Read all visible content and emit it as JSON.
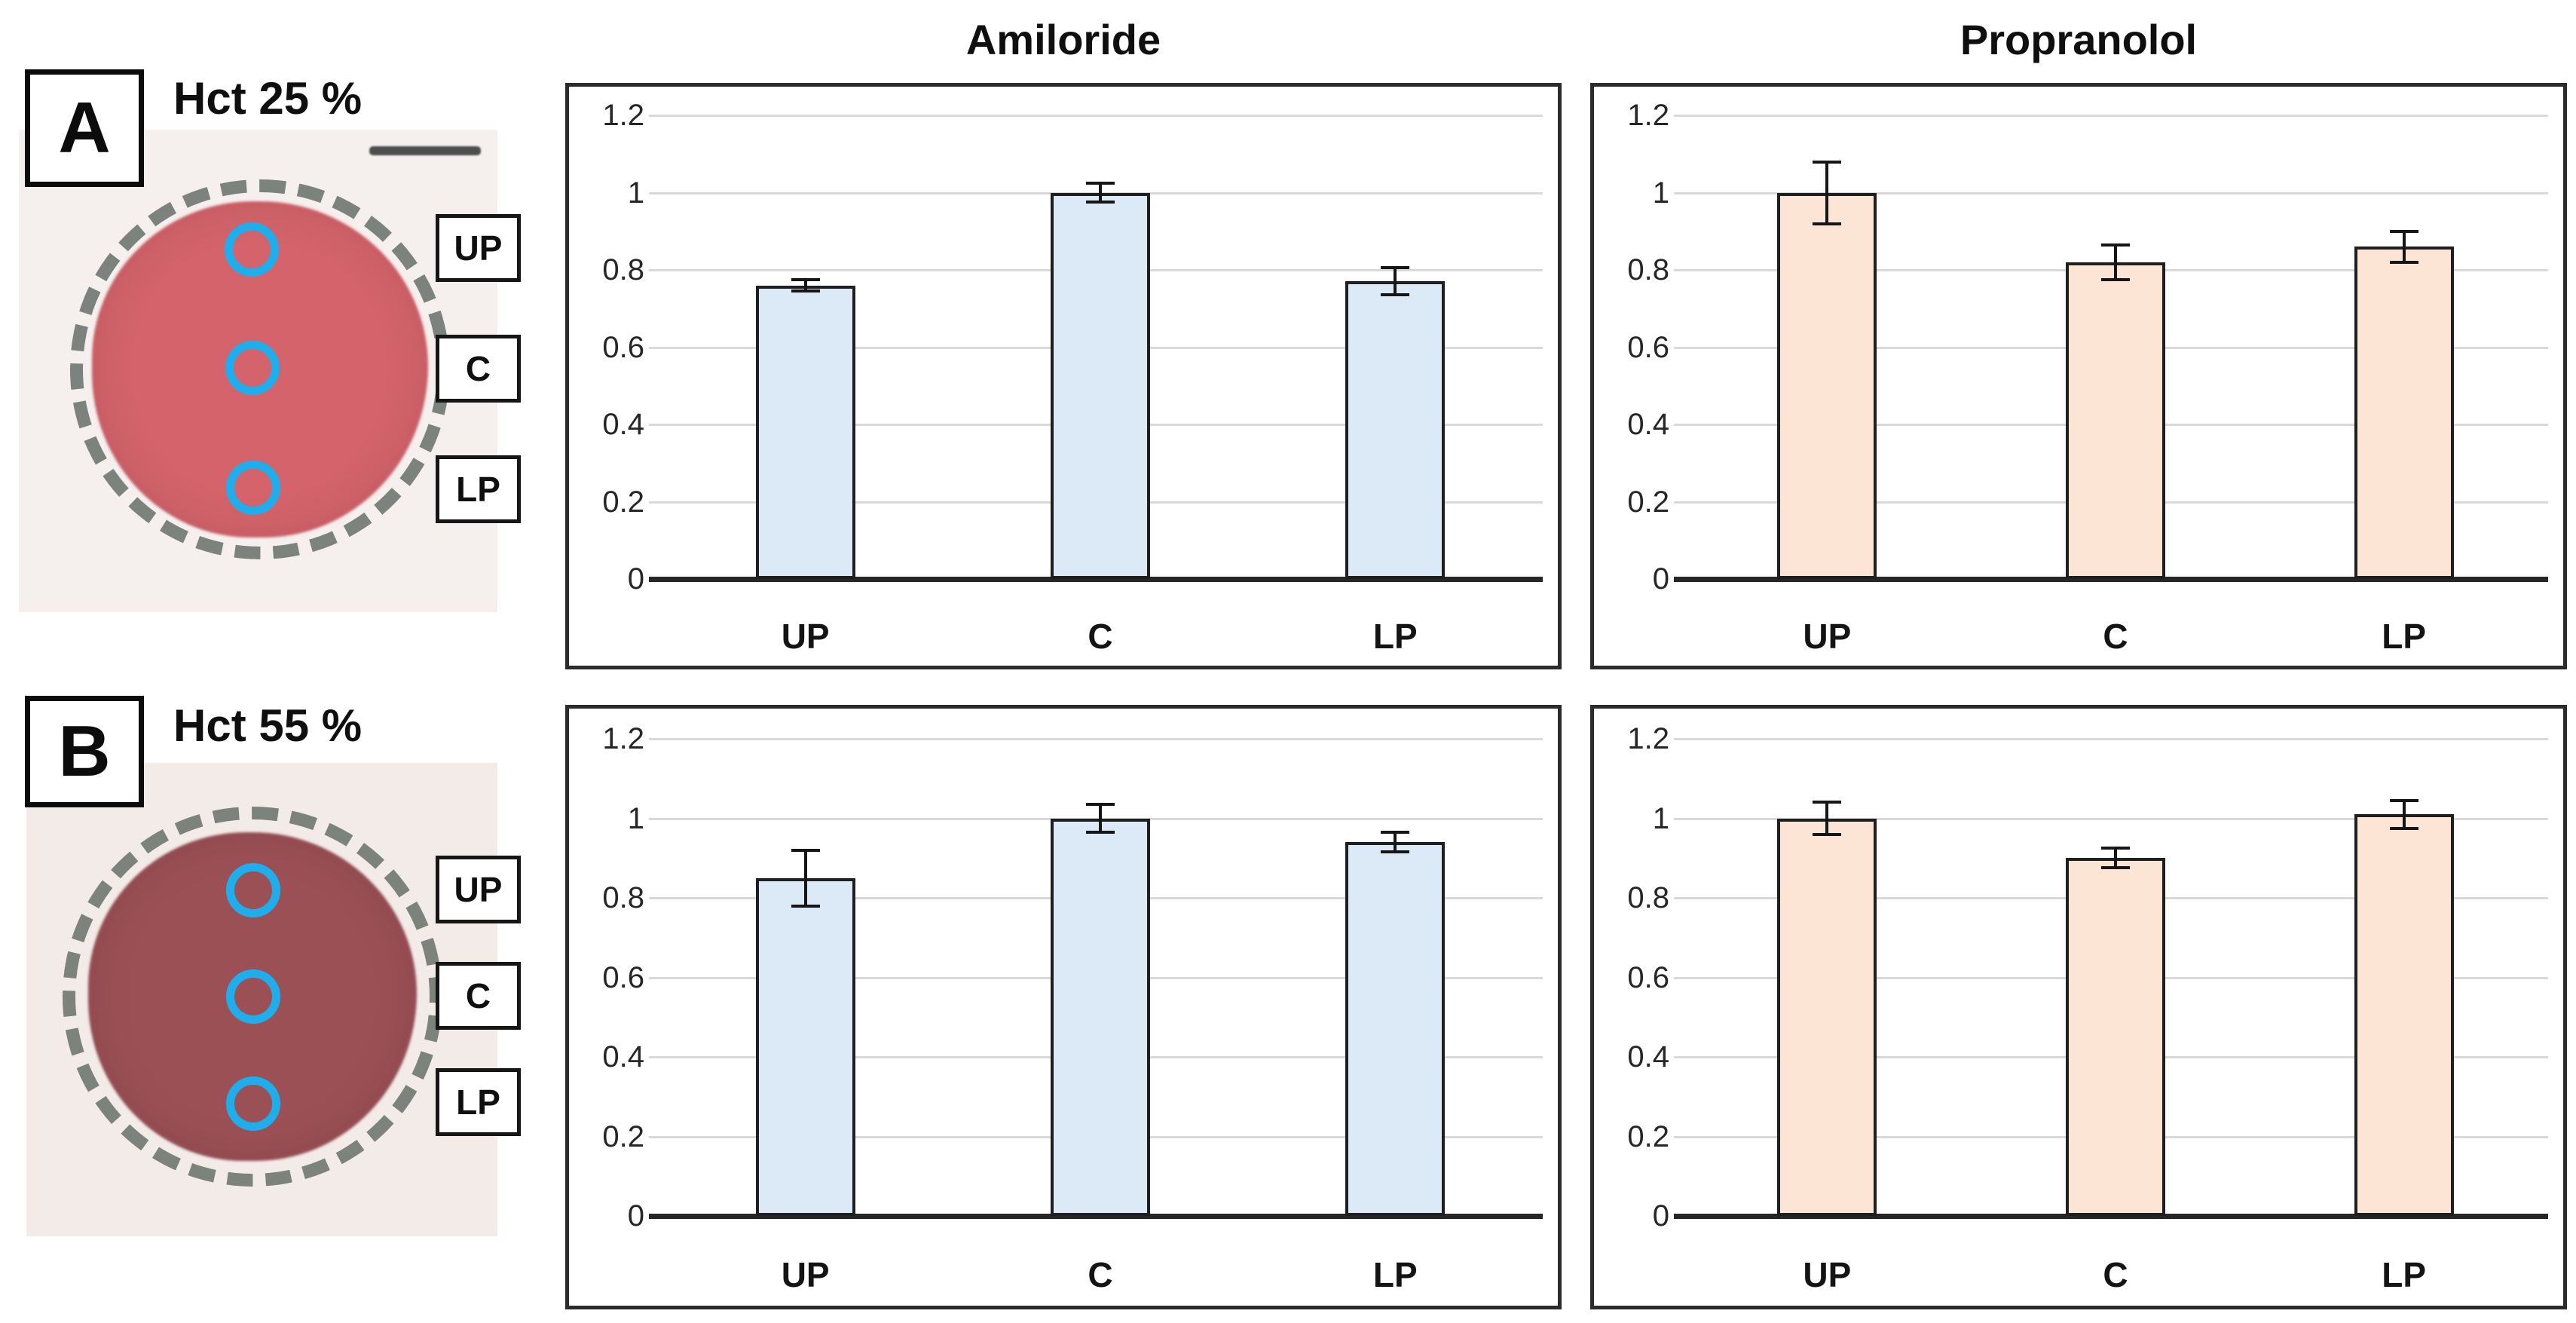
{
  "columns": {
    "amiloride_title": "Amiloride",
    "propranolol_title": "Propranolol"
  },
  "panels": [
    {
      "label": "A",
      "hct": "Hct 25 %",
      "samples": [
        "UP",
        "C",
        "LP"
      ],
      "blood_color": "#d4636b",
      "card_color": "#f5efee"
    },
    {
      "label": "B",
      "hct": "Hct 55 %",
      "samples": [
        "UP",
        "C",
        "LP"
      ],
      "blood_color": "#9b5056",
      "card_color": "#f2ebe7"
    }
  ],
  "accent": {
    "marker_ring_blue": "#1fadec",
    "dashed_ring_gray": "#68706a"
  },
  "chart_data": [
    {
      "type": "bar",
      "panel": "A",
      "title": "Amiloride",
      "categories": [
        "UP",
        "C",
        "LP"
      ],
      "values": [
        0.76,
        1.0,
        0.77
      ],
      "errors": [
        0.015,
        0.025,
        0.035
      ],
      "bar_fill": "#dce9f6",
      "bar_stroke": "#1f1f1f",
      "ylim": [
        0,
        1.2
      ],
      "yticks": [
        {
          "label": "0",
          "value": 0
        },
        {
          "label": "0.2",
          "value": 0.2
        },
        {
          "label": "0.4",
          "value": 0.4
        },
        {
          "label": "0.6",
          "value": 0.6
        },
        {
          "label": "0.8",
          "value": 0.8
        },
        {
          "label": "1",
          "value": 1
        },
        {
          "label": "1.2",
          "value": 1.2
        }
      ],
      "grid": true,
      "legend": "none"
    },
    {
      "type": "bar",
      "panel": "A",
      "title": "Propranolol",
      "categories": [
        "UP",
        "C",
        "LP"
      ],
      "values": [
        1.0,
        0.82,
        0.86
      ],
      "errors": [
        0.08,
        0.045,
        0.04
      ],
      "bar_fill": "#fde5d5",
      "bar_stroke": "#1f1f1f",
      "ylim": [
        0,
        1.2
      ],
      "yticks": [
        {
          "label": "0",
          "value": 0
        },
        {
          "label": "0.2",
          "value": 0.2
        },
        {
          "label": "0.4",
          "value": 0.4
        },
        {
          "label": "0.6",
          "value": 0.6
        },
        {
          "label": "0.8",
          "value": 0.8
        },
        {
          "label": "1",
          "value": 1
        },
        {
          "label": "1.2",
          "value": 1.2
        }
      ],
      "grid": true,
      "legend": "none"
    },
    {
      "type": "bar",
      "panel": "B",
      "title": "Amiloride",
      "categories": [
        "UP",
        "C",
        "LP"
      ],
      "values": [
        0.85,
        1.0,
        0.94
      ],
      "errors": [
        0.07,
        0.035,
        0.025
      ],
      "bar_fill": "#dce9f6",
      "bar_stroke": "#1f1f1f",
      "ylim": [
        0,
        1.2
      ],
      "yticks": [
        {
          "label": "0",
          "value": 0
        },
        {
          "label": "0.2",
          "value": 0.2
        },
        {
          "label": "0.4",
          "value": 0.4
        },
        {
          "label": "0.6",
          "value": 0.6
        },
        {
          "label": "0.8",
          "value": 0.8
        },
        {
          "label": "1",
          "value": 1
        },
        {
          "label": "1.2",
          "value": 1.2
        }
      ],
      "grid": true,
      "legend": "none"
    },
    {
      "type": "bar",
      "panel": "B",
      "title": "Propranolol",
      "categories": [
        "UP",
        "C",
        "LP"
      ],
      "values": [
        1.0,
        0.9,
        1.01
      ],
      "errors": [
        0.04,
        0.025,
        0.035
      ],
      "bar_fill": "#fde5d5",
      "bar_stroke": "#1f1f1f",
      "ylim": [
        0,
        1.2
      ],
      "yticks": [
        {
          "label": "0",
          "value": 0
        },
        {
          "label": "0.2",
          "value": 0.2
        },
        {
          "label": "0.4",
          "value": 0.4
        },
        {
          "label": "0.6",
          "value": 0.6
        },
        {
          "label": "0.8",
          "value": 0.8
        },
        {
          "label": "1",
          "value": 1
        },
        {
          "label": "1.2",
          "value": 1.2
        }
      ],
      "grid": true,
      "legend": "none"
    }
  ]
}
